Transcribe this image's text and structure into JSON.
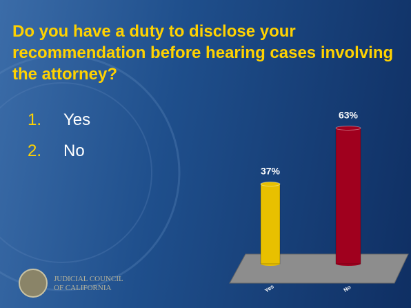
{
  "title": "Do you have a duty to disclose your recommendation before hearing cases involving the attorney?",
  "options": [
    {
      "number": "1.",
      "text": "Yes"
    },
    {
      "number": "2.",
      "text": "No"
    }
  ],
  "logo": {
    "line1": "JUDICIAL COUNCIL",
    "line2": "OF CALIFORNIA"
  },
  "chart_data": {
    "type": "bar",
    "categories": [
      "Yes",
      "No"
    ],
    "values": [
      37,
      63
    ],
    "value_labels": [
      "37%",
      "63%"
    ],
    "colors": [
      "#e8c000",
      "#a0001e"
    ]
  }
}
